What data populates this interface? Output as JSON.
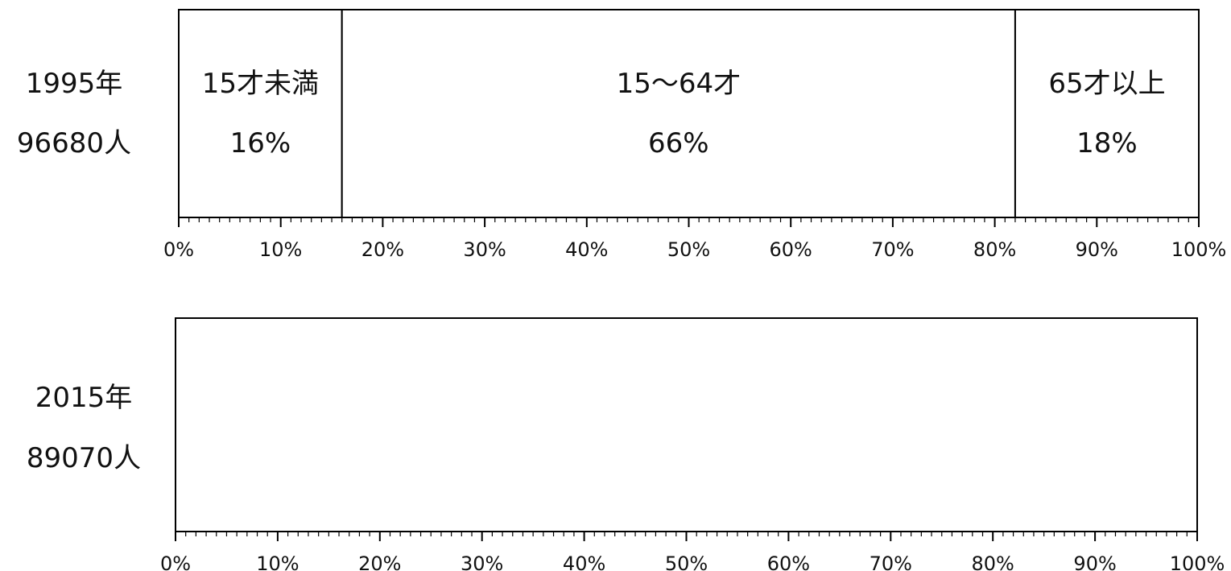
{
  "chart_data": [
    {
      "type": "bar",
      "orientation": "horizontal-stacked-100",
      "row_label": {
        "year": "1995年",
        "population": "96680人"
      },
      "segments": [
        {
          "name": "15才未満",
          "value": 16,
          "label": "16%"
        },
        {
          "name": "15～64才",
          "value": 66,
          "label": "66%"
        },
        {
          "name": "65才以上",
          "value": 18,
          "label": "18%"
        }
      ],
      "xlim": [
        0,
        100
      ],
      "tick_labels": [
        "0%",
        "10%",
        "20%",
        "30%",
        "40%",
        "50%",
        "60%",
        "70%",
        "80%",
        "90%",
        "100%"
      ]
    },
    {
      "type": "bar",
      "orientation": "horizontal-stacked-100",
      "row_label": {
        "year": "2015年",
        "population": "89070人"
      },
      "segments": [],
      "xlim": [
        0,
        100
      ],
      "tick_labels": [
        "0%",
        "10%",
        "20%",
        "30%",
        "40%",
        "50%",
        "60%",
        "70%",
        "80%",
        "90%",
        "100%"
      ]
    }
  ]
}
